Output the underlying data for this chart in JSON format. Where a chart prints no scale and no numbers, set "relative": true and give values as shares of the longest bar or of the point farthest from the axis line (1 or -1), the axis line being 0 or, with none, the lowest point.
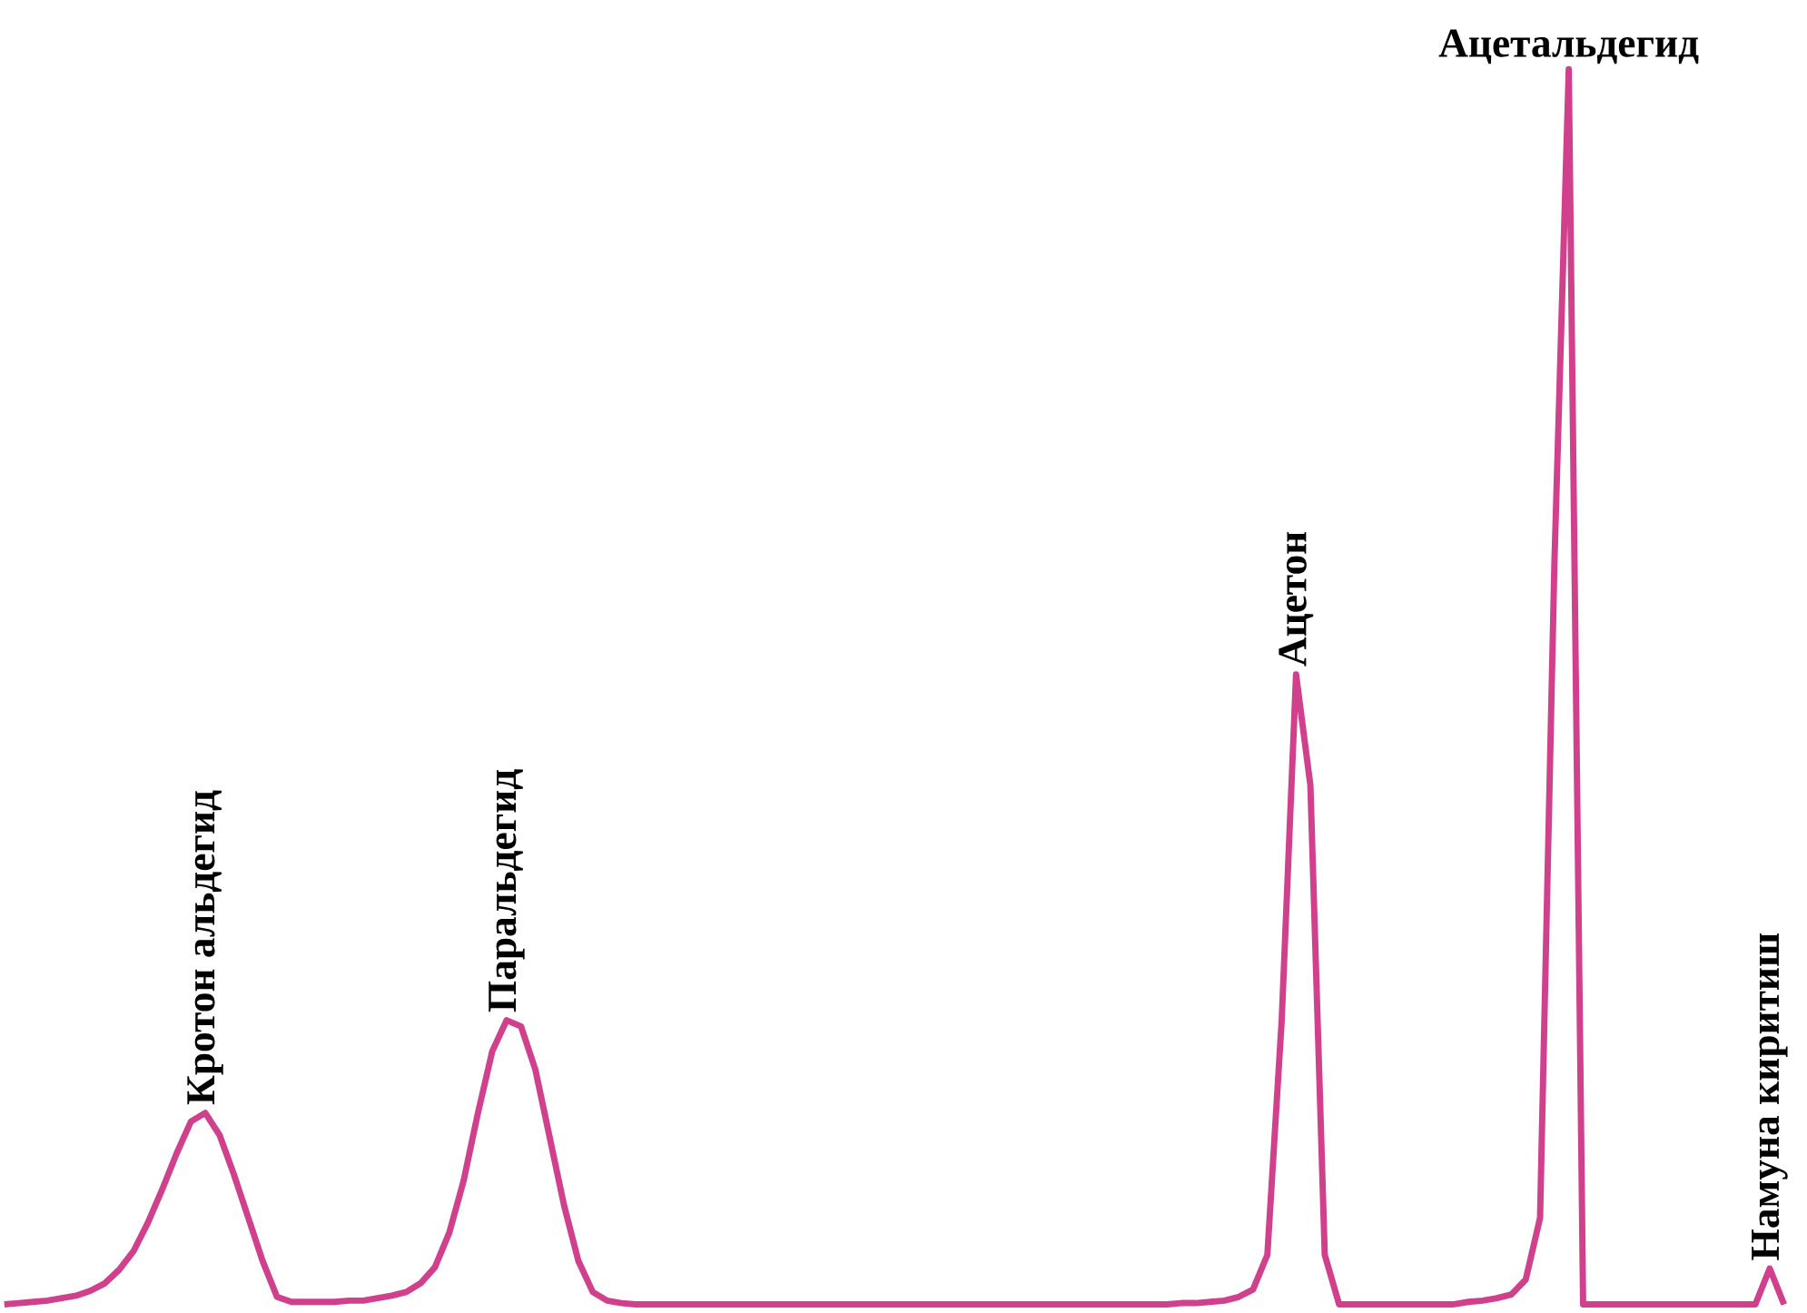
{
  "chart_data": {
    "type": "line",
    "relative": true,
    "color": "#d0408c",
    "line_style": "solid",
    "categories": [
      null,
      null,
      null,
      null,
      null,
      null,
      null,
      null,
      null,
      null,
      null,
      null,
      null,
      null,
      null,
      null,
      null,
      null,
      null,
      null,
      null,
      null,
      null,
      null,
      null,
      null,
      null,
      null,
      null,
      null,
      null,
      null,
      null,
      null,
      null,
      null,
      null,
      null,
      null,
      null,
      null,
      null,
      null,
      null,
      null,
      null,
      null,
      null,
      null,
      null,
      null,
      null,
      null,
      null,
      null,
      null,
      null,
      null,
      null,
      null,
      null,
      null,
      null,
      null,
      null,
      null,
      null,
      null,
      null,
      null,
      null,
      null,
      null,
      null,
      null,
      null,
      null,
      null,
      null,
      null,
      null,
      null,
      null,
      null,
      null,
      null,
      null,
      null,
      null,
      null,
      null,
      null,
      null,
      null,
      null,
      null,
      null,
      null,
      null,
      null,
      null,
      null,
      null,
      null,
      null,
      null,
      null,
      null,
      null,
      null,
      null,
      null,
      null,
      null,
      null,
      null,
      null,
      null,
      null,
      null,
      null,
      null,
      null,
      null,
      null
    ],
    "values": [
      0,
      0.001,
      0.002,
      0.003,
      0.005,
      0.007,
      0.011,
      0.017,
      0.028,
      0.043,
      0.066,
      0.093,
      0.122,
      0.148,
      0.155,
      0.137,
      0.105,
      0.07,
      0.035,
      0.006,
      0.002,
      0.002,
      0.002,
      0.002,
      0.003,
      0.003,
      0.005,
      0.007,
      0.01,
      0.017,
      0.03,
      0.058,
      0.1,
      0.155,
      0.205,
      0.23,
      0.225,
      0.19,
      0.135,
      0.08,
      0.035,
      0.01,
      0.003,
      0.001,
      0,
      0,
      0,
      0,
      0,
      0,
      0,
      0,
      0,
      0,
      0,
      0,
      0,
      0,
      0,
      0,
      0,
      0,
      0,
      0,
      0,
      0,
      0,
      0,
      0,
      0,
      0,
      0,
      0,
      0,
      0,
      0,
      0,
      0,
      0,
      0,
      0,
      0,
      0.001,
      0.001,
      0.002,
      0.003,
      0.006,
      0.012,
      0.04,
      0.23,
      0.51,
      0.42,
      0.04,
      0,
      0,
      0,
      0,
      0,
      0,
      0,
      0,
      0,
      0.002,
      0.003,
      0.005,
      0.008,
      0.02,
      0.07,
      0.6,
      1.0,
      0,
      0,
      0,
      0,
      0,
      0,
      0,
      0,
      0,
      0,
      0,
      0,
      0,
      0.029,
      0
    ],
    "annotations": [
      "Кротон альдегид",
      "Паральдегид",
      "Ацетон",
      "Ацетальдегид",
      "Намуна киритиш"
    ]
  }
}
